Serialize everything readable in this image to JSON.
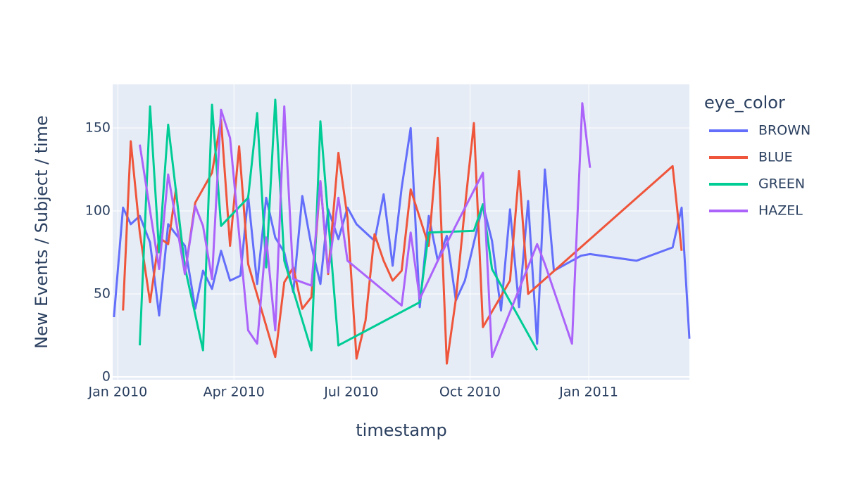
{
  "chart_data": {
    "type": "line",
    "xlabel": "timestamp",
    "ylabel": "New Events / Subject / time",
    "legend_title": "eye_color",
    "xlim": [
      "2009-12-28",
      "2011-03-20"
    ],
    "xticks": [
      {
        "value": "2010-01-01",
        "label": "Jan 2010"
      },
      {
        "value": "2010-04-01",
        "label": "Apr 2010"
      },
      {
        "value": "2010-07-01",
        "label": "Jul 2010"
      },
      {
        "value": "2010-10-01",
        "label": "Oct 2010"
      },
      {
        "value": "2011-01-01",
        "label": "Jan 2011"
      }
    ],
    "ylim": [
      -1.7,
      176.3
    ],
    "yticks": [
      0,
      50,
      100,
      150
    ],
    "grid": true,
    "series": [
      {
        "name": "BROWN",
        "color": "#636efa",
        "x": [
          "2009-12-29",
          "2010-01-05",
          "2010-01-11",
          "2010-01-18",
          "2010-01-26",
          "2010-02-02",
          "2010-02-09",
          "2010-02-22",
          "2010-03-02",
          "2010-03-08",
          "2010-03-15",
          "2010-03-22",
          "2010-03-29",
          "2010-04-06",
          "2010-04-12",
          "2010-04-19",
          "2010-04-26",
          "2010-05-03",
          "2010-05-10",
          "2010-05-17",
          "2010-05-24",
          "2010-05-31",
          "2010-06-07",
          "2010-06-13",
          "2010-06-21",
          "2010-06-28",
          "2010-07-05",
          "2010-07-19",
          "2010-07-26",
          "2010-08-02",
          "2010-08-09",
          "2010-08-16",
          "2010-08-23",
          "2010-08-30",
          "2010-09-06",
          "2010-09-13",
          "2010-09-20",
          "2010-09-27",
          "2010-10-11",
          "2010-10-18",
          "2010-10-25",
          "2010-11-01",
          "2010-11-08",
          "2010-11-15",
          "2010-11-22",
          "2010-11-28",
          "2010-12-05",
          "2010-12-26",
          "2011-01-02",
          "2011-02-07",
          "2011-03-07",
          "2011-03-14",
          "2011-03-20"
        ],
        "values": [
          36,
          102,
          92,
          97,
          81,
          37,
          92,
          79,
          41,
          64,
          53,
          76,
          58,
          61,
          109,
          56,
          108,
          84,
          75,
          51,
          109,
          79,
          56,
          101,
          83,
          102,
          92,
          82,
          110,
          67,
          114,
          150,
          42,
          97,
          70,
          85,
          46,
          58,
          104,
          82,
          40,
          101,
          42,
          106,
          20,
          125,
          64,
          73,
          74,
          70,
          78,
          102,
          23
        ]
      },
      {
        "name": "BLUE",
        "color": "#ef553b",
        "x": [
          "2010-01-05",
          "2010-01-11",
          "2010-01-18",
          "2010-01-26",
          "2010-02-02",
          "2010-02-09",
          "2010-02-15",
          "2010-02-22",
          "2010-03-02",
          "2010-03-15",
          "2010-03-22",
          "2010-03-29",
          "2010-04-05",
          "2010-04-12",
          "2010-05-03",
          "2010-05-10",
          "2010-05-17",
          "2010-05-24",
          "2010-05-31",
          "2010-06-07",
          "2010-06-13",
          "2010-06-21",
          "2010-06-28",
          "2010-07-05",
          "2010-07-12",
          "2010-07-19",
          "2010-07-26",
          "2010-08-02",
          "2010-08-09",
          "2010-08-16",
          "2010-08-30",
          "2010-09-06",
          "2010-09-13",
          "2010-09-20",
          "2010-09-27",
          "2010-10-04",
          "2010-10-11",
          "2010-11-01",
          "2010-11-08",
          "2010-11-15",
          "2011-03-07",
          "2011-03-14"
        ],
        "values": [
          40,
          142,
          87,
          45,
          84,
          80,
          113,
          62,
          105,
          123,
          155,
          79,
          139,
          68,
          12,
          57,
          66,
          41,
          48,
          118,
          62,
          135,
          96,
          11,
          34,
          86,
          70,
          58,
          64,
          113,
          79,
          144,
          8,
          47,
          102,
          153,
          30,
          58,
          124,
          50,
          127,
          76
        ]
      },
      {
        "name": "GREEN",
        "color": "#00cc96",
        "x": [
          "2010-01-18",
          "2010-01-26",
          "2010-02-02",
          "2010-02-09",
          "2010-02-22",
          "2010-03-08",
          "2010-03-15",
          "2010-03-22",
          "2010-04-12",
          "2010-04-19",
          "2010-04-26",
          "2010-05-03",
          "2010-05-10",
          "2010-05-31",
          "2010-06-07",
          "2010-06-21",
          "2010-08-23",
          "2010-08-30",
          "2010-10-04",
          "2010-10-11",
          "2010-10-18",
          "2010-11-22"
        ],
        "values": [
          19,
          163,
          75,
          152,
          66,
          16,
          164,
          91,
          108,
          159,
          66,
          167,
          70,
          16,
          154,
          19,
          45,
          87,
          88,
          104,
          65,
          16
        ]
      },
      {
        "name": "HAZEL",
        "color": "#ab63fa",
        "x": [
          "2010-01-18",
          "2010-02-02",
          "2010-02-09",
          "2010-02-22",
          "2010-03-02",
          "2010-03-08",
          "2010-03-15",
          "2010-03-22",
          "2010-03-29",
          "2010-04-12",
          "2010-04-19",
          "2010-04-26",
          "2010-05-03",
          "2010-05-10",
          "2010-05-17",
          "2010-05-31",
          "2010-06-07",
          "2010-06-13",
          "2010-06-21",
          "2010-06-28",
          "2010-08-09",
          "2010-08-16",
          "2010-08-23",
          "2010-09-06",
          "2010-10-11",
          "2010-10-18",
          "2010-11-22",
          "2010-11-28",
          "2010-12-19",
          "2010-12-27",
          "2011-01-02"
        ],
        "values": [
          140,
          65,
          122,
          62,
          103,
          91,
          59,
          161,
          144,
          28,
          20,
          84,
          28,
          163,
          59,
          55,
          118,
          63,
          108,
          70,
          43,
          87,
          47,
          70,
          123,
          12,
          80,
          68,
          20,
          165,
          126
        ]
      }
    ]
  }
}
